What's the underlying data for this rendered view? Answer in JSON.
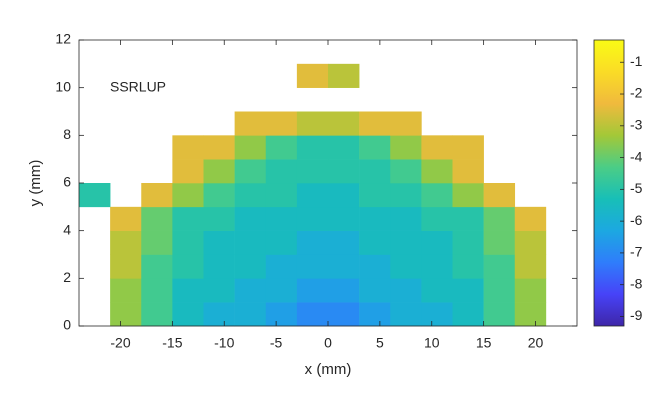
{
  "chart_data": {
    "type": "heatmap",
    "annotation": "SSRLUP",
    "x_label": "x (mm)",
    "y_label": "y (mm)",
    "xlim": [
      -24,
      24
    ],
    "ylim": [
      0,
      12
    ],
    "xticks": [
      -20,
      -15,
      -10,
      -5,
      0,
      5,
      10,
      15,
      20
    ],
    "yticks": [
      0,
      2,
      4,
      6,
      8,
      10,
      12
    ],
    "xbins": [
      -24,
      -21,
      -18,
      -15,
      -12,
      -9,
      -6,
      -3,
      0,
      3,
      6,
      9,
      12,
      15,
      18,
      21,
      24
    ],
    "ybins": [
      0,
      1,
      2,
      3,
      4,
      5,
      6,
      7,
      8,
      9,
      10,
      11,
      12
    ],
    "z": [
      [
        null,
        -3.5,
        -4.5,
        -5.5,
        -6,
        -6,
        -6.5,
        -7,
        -7,
        -6.5,
        -6,
        -6,
        -5.5,
        -4.5,
        -3.5,
        null
      ],
      [
        null,
        -3.5,
        -4.5,
        -5.5,
        -5.5,
        -6,
        -6,
        -6.5,
        -6.5,
        -6,
        -6,
        -5.5,
        -5.5,
        -4.5,
        -3.5,
        null
      ],
      [
        null,
        -3,
        -4.5,
        -5,
        -5.5,
        -5.5,
        -6,
        -6,
        -6,
        -6,
        -5.5,
        -5.5,
        -5,
        -4.5,
        -3,
        null
      ],
      [
        null,
        -3,
        -4,
        -5,
        -5.5,
        -5.5,
        -5.5,
        -6,
        -6,
        -5.5,
        -5.5,
        -5.5,
        -5,
        -4,
        -3,
        null
      ],
      [
        null,
        -2.5,
        -4,
        -5,
        -5,
        -5.5,
        -5.5,
        -5.5,
        -5.5,
        -5.5,
        -5.5,
        -5,
        -5,
        -4,
        -2.5,
        null
      ],
      [
        -5,
        null,
        -2.5,
        -3.5,
        -4.5,
        -5,
        -5,
        -5.5,
        -5.5,
        -5,
        -5,
        -4.5,
        -3.5,
        -2.5,
        null,
        null
      ],
      [
        null,
        null,
        null,
        -2.5,
        -3.5,
        -4.5,
        -5,
        -5,
        -5,
        -5,
        -4.5,
        -3.5,
        -2.5,
        null,
        null,
        null
      ],
      [
        null,
        null,
        null,
        -2.5,
        -2.5,
        -3.5,
        -4.5,
        -5,
        -5,
        -4.5,
        -3.5,
        -2.5,
        -2.5,
        null,
        null,
        null
      ],
      [
        null,
        null,
        null,
        null,
        null,
        -2.5,
        -2.5,
        -3,
        -3,
        -2.5,
        -2.5,
        null,
        null,
        null,
        null,
        null
      ],
      [
        null,
        null,
        null,
        null,
        null,
        null,
        null,
        null,
        null,
        null,
        null,
        null,
        null,
        null,
        null,
        null
      ],
      [
        null,
        null,
        null,
        null,
        null,
        null,
        null,
        -2.5,
        -3,
        null,
        null,
        null,
        null,
        null,
        null,
        null
      ],
      [
        null,
        null,
        null,
        null,
        null,
        null,
        null,
        null,
        null,
        null,
        null,
        null,
        null,
        null,
        null,
        null
      ]
    ],
    "clim": [
      -9.3,
      -0.3
    ],
    "cticks": [
      -9,
      -8,
      -7,
      -6,
      -5,
      -4,
      -3,
      -2,
      -1
    ],
    "colormap": [
      "#3e26a8",
      "#4743f8",
      "#2f7dfb",
      "#1ca8e1",
      "#18bfb7",
      "#4bcd86",
      "#a3c838",
      "#f0ba3d",
      "#fadc26",
      "#f9fb15"
    ]
  }
}
